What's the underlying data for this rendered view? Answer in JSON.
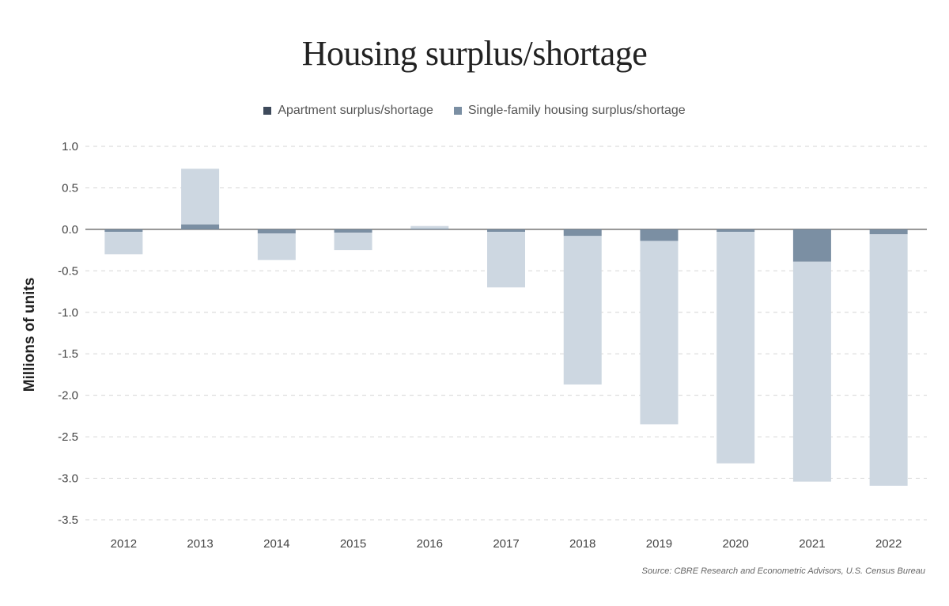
{
  "chart_data": {
    "type": "bar",
    "stacked": true,
    "title": "Housing surplus/shortage",
    "ylabel": "Millions of units",
    "xlabel": "",
    "categories": [
      "2012",
      "2013",
      "2014",
      "2015",
      "2016",
      "2017",
      "2018",
      "2019",
      "2020",
      "2021",
      "2022"
    ],
    "series": [
      {
        "name": "Apartment surplus/shortage",
        "color": "#7b8fa3",
        "legend_color": "#3e4a5b",
        "values": [
          -0.03,
          0.06,
          -0.05,
          -0.04,
          0.01,
          -0.03,
          -0.08,
          -0.14,
          -0.03,
          -0.39,
          -0.06
        ]
      },
      {
        "name": "Single-family housing surplus/shortage",
        "color": "#cdd7e1",
        "legend_color": "#7b8fa3",
        "values": [
          -0.27,
          0.67,
          -0.32,
          -0.21,
          0.03,
          -0.67,
          -1.79,
          -2.21,
          -2.79,
          -2.65,
          -3.03
        ]
      }
    ],
    "ylim": [
      -3.5,
      1.0
    ],
    "yticks": [
      "1.0",
      "0.5",
      "0.0",
      "-0.5",
      "-1.0",
      "-1.5",
      "-2.0",
      "-2.5",
      "-3.0",
      "-3.5"
    ],
    "grid": true,
    "legend_position": "top-center",
    "source": "Source: CBRE Research and Econometric Advisors, U.S. Census Bureau"
  }
}
